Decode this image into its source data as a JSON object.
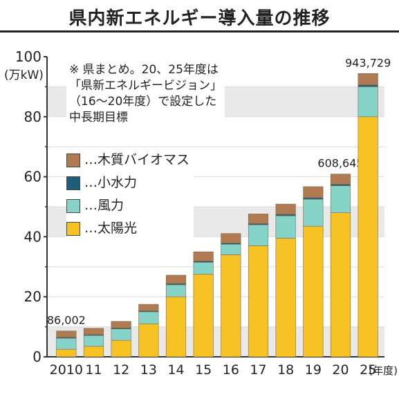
{
  "title": "県内新エネルギー導入量の推移",
  "note_lines": [
    "※ 県まとめ。20、25年度は",
    "「県新エネルギービジョン」",
    "（16～20年度）で設定した",
    "中長期目標"
  ],
  "colors": {
    "wood": "#b07a52",
    "hydro": "#1f5e78",
    "wind": "#86d3c8",
    "solar": "#f7c324",
    "grid_band": "#e9e9e9",
    "axis": "#333333"
  },
  "chart_data": {
    "type": "bar",
    "stacked": true,
    "categories": [
      "2010",
      "11",
      "12",
      "13",
      "14",
      "15",
      "16",
      "17",
      "18",
      "19",
      "20",
      "25"
    ],
    "x_unit_label": "(年度)",
    "y_unit_label": "(万kW)",
    "ylim": [
      0,
      100
    ],
    "yticks": [
      0,
      20,
      40,
      60,
      80,
      100
    ],
    "grid": true,
    "legend_position": "upper-left",
    "series": [
      {
        "name": "…太陽光",
        "color_key": "solar",
        "values": [
          2.5,
          3.5,
          5.5,
          11,
          20,
          27.5,
          34,
          37,
          39.5,
          43.5,
          48,
          80
        ]
      },
      {
        "name": "…風力",
        "color_key": "wind",
        "values": [
          3.7,
          3.6,
          3.8,
          4,
          4,
          4,
          3.5,
          7,
          7.5,
          9,
          9,
          10
        ]
      },
      {
        "name": "…小水力",
        "color_key": "hydro",
        "values": [
          0.3,
          0.3,
          0.3,
          0.3,
          0.4,
          0.4,
          0.4,
          0.4,
          0.5,
          0.5,
          0.5,
          0.6
        ]
      },
      {
        "name": "…木質バイオマス",
        "color_key": "wood",
        "values": [
          2.1,
          2.1,
          2.2,
          2.2,
          2.8,
          3.1,
          3.2,
          3.2,
          3.4,
          3.7,
          3.4,
          3.8
        ]
      }
    ],
    "legend_order": [
      "…木質バイオマス",
      "…小水力",
      "…風力",
      "…太陽光"
    ],
    "annotations": [
      {
        "category_index": 0,
        "text": "86,002"
      },
      {
        "category_index": 10,
        "text": "608,645"
      },
      {
        "category_index": 11,
        "text": "943,729"
      }
    ]
  }
}
